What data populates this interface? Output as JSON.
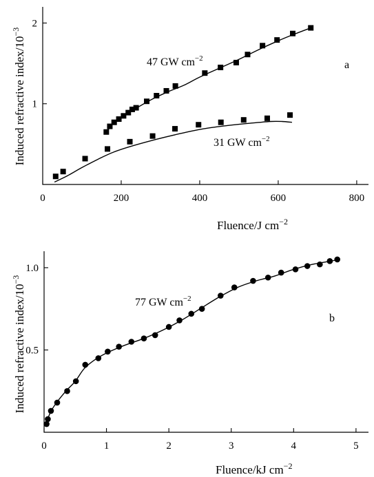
{
  "chart_data": [
    {
      "panel": "a",
      "type": "scatter",
      "ylabel": "Induced refractive index/10",
      "ylabel_exp": "−3",
      "xlabel": "Fluence/J cm",
      "xlabel_exp": "−2",
      "xlim": [
        0,
        830
      ],
      "ylim": [
        0,
        2.2
      ],
      "xticks": [
        0,
        200,
        400,
        600,
        800
      ],
      "xtick_labels": [
        "0",
        "200",
        "400",
        "600",
        "800"
      ],
      "yticks": [
        1,
        2
      ],
      "ytick_labels": [
        "1",
        "2"
      ],
      "grid": false,
      "series": [
        {
          "marker": "square",
          "color": "#000000",
          "points": [
            [
              162,
              0.65
            ],
            [
              171,
              0.72
            ],
            [
              182,
              0.77
            ],
            [
              194,
              0.81
            ],
            [
              206,
              0.85
            ],
            [
              218,
              0.89
            ],
            [
              228,
              0.93
            ],
            [
              238,
              0.95
            ],
            [
              265,
              1.03
            ],
            [
              290,
              1.1
            ],
            [
              315,
              1.16
            ],
            [
              338,
              1.22
            ],
            [
              413,
              1.38
            ],
            [
              453,
              1.45
            ],
            [
              493,
              1.51
            ],
            [
              522,
              1.61
            ],
            [
              560,
              1.72
            ],
            [
              597,
              1.79
            ],
            [
              637,
              1.87
            ],
            [
              683,
              1.94
            ]
          ],
          "fit": [
            [
              160,
              0.64
            ],
            [
              185,
              0.78
            ],
            [
              210,
              0.86
            ],
            [
              240,
              0.95
            ],
            [
              280,
              1.06
            ],
            [
              320,
              1.15
            ],
            [
              360,
              1.23
            ],
            [
              400,
              1.33
            ],
            [
              450,
              1.44
            ],
            [
              500,
              1.55
            ],
            [
              550,
              1.67
            ],
            [
              600,
              1.78
            ],
            [
              640,
              1.86
            ],
            [
              683,
              1.94
            ]
          ],
          "annotation": "47 GW cm",
          "annotation_exp": "−2"
        },
        {
          "marker": "square",
          "color": "#000000",
          "points": [
            [
              33,
              0.1
            ],
            [
              52,
              0.16
            ],
            [
              108,
              0.32
            ],
            [
              165,
              0.44
            ],
            [
              222,
              0.53
            ],
            [
              280,
              0.6
            ],
            [
              337,
              0.69
            ],
            [
              397,
              0.74
            ],
            [
              454,
              0.77
            ],
            [
              512,
              0.8
            ],
            [
              572,
              0.82
            ],
            [
              630,
              0.86
            ]
          ],
          "fit": [
            [
              30,
              0.03
            ],
            [
              60,
              0.1
            ],
            [
              100,
              0.21
            ],
            [
              140,
              0.31
            ],
            [
              180,
              0.4
            ],
            [
              230,
              0.48
            ],
            [
              290,
              0.56
            ],
            [
              350,
              0.63
            ],
            [
              410,
              0.69
            ],
            [
              470,
              0.73
            ],
            [
              530,
              0.76
            ],
            [
              580,
              0.78
            ],
            [
              610,
              0.78
            ],
            [
              635,
              0.77
            ]
          ],
          "annotation": "31 GW cm",
          "annotation_exp": "−2"
        }
      ]
    },
    {
      "panel": "b",
      "type": "scatter",
      "ylabel": "Induced refractive index/10",
      "ylabel_exp": "−3",
      "xlabel": "Fluence/kJ cm",
      "xlabel_exp": "−2",
      "xlim": [
        0,
        5.2
      ],
      "ylim": [
        0,
        1.1
      ],
      "xticks": [
        0,
        1,
        2,
        3,
        4,
        5
      ],
      "xtick_labels": [
        "0",
        "1",
        "2",
        "3",
        "4",
        "5"
      ],
      "yticks": [
        0.5,
        1.0
      ],
      "ytick_labels": [
        "0.5",
        "1.0"
      ],
      "grid": false,
      "series": [
        {
          "marker": "circle",
          "color": "#000000",
          "points": [
            [
              0.04,
              0.05
            ],
            [
              0.06,
              0.08
            ],
            [
              0.11,
              0.13
            ],
            [
              0.21,
              0.18
            ],
            [
              0.37,
              0.25
            ],
            [
              0.51,
              0.31
            ],
            [
              0.66,
              0.41
            ],
            [
              0.87,
              0.45
            ],
            [
              1.02,
              0.49
            ],
            [
              1.2,
              0.52
            ],
            [
              1.4,
              0.55
            ],
            [
              1.6,
              0.57
            ],
            [
              1.78,
              0.59
            ],
            [
              2.0,
              0.64
            ],
            [
              2.17,
              0.68
            ],
            [
              2.36,
              0.72
            ],
            [
              2.53,
              0.75
            ],
            [
              2.83,
              0.83
            ],
            [
              3.05,
              0.88
            ],
            [
              3.35,
              0.92
            ],
            [
              3.59,
              0.94
            ],
            [
              3.8,
              0.97
            ],
            [
              4.03,
              0.99
            ],
            [
              4.22,
              1.01
            ],
            [
              4.42,
              1.02
            ],
            [
              4.58,
              1.04
            ],
            [
              4.7,
              1.05
            ]
          ],
          "fit": [
            [
              0.03,
              0.05
            ],
            [
              0.1,
              0.12
            ],
            [
              0.2,
              0.18
            ],
            [
              0.35,
              0.25
            ],
            [
              0.5,
              0.31
            ],
            [
              0.65,
              0.39
            ],
            [
              0.85,
              0.45
            ],
            [
              1.05,
              0.49
            ],
            [
              1.3,
              0.53
            ],
            [
              1.6,
              0.57
            ],
            [
              1.9,
              0.62
            ],
            [
              2.2,
              0.68
            ],
            [
              2.5,
              0.75
            ],
            [
              2.8,
              0.82
            ],
            [
              3.1,
              0.88
            ],
            [
              3.4,
              0.92
            ],
            [
              3.7,
              0.95
            ],
            [
              4.0,
              0.99
            ],
            [
              4.3,
              1.02
            ],
            [
              4.6,
              1.04
            ],
            [
              4.7,
              1.05
            ]
          ],
          "annotation": "77 GW cm",
          "annotation_exp": "−2"
        }
      ]
    }
  ]
}
